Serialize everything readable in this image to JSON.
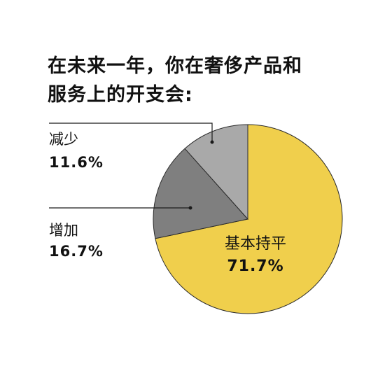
{
  "chart_data": {
    "type": "pie",
    "title_lines": [
      "在未来一年，你在奢侈产品和",
      "服务上的开支会:"
    ],
    "slices": [
      {
        "label": "基本持平",
        "value": 71.7,
        "display": "71.7%",
        "color": "#f0cf4c"
      },
      {
        "label": "增加",
        "value": 16.7,
        "display": "16.7%",
        "color": "#7f7f7f"
      },
      {
        "label": "减少",
        "value": 11.6,
        "display": "11.6%",
        "color": "#a9a9a9"
      }
    ]
  }
}
